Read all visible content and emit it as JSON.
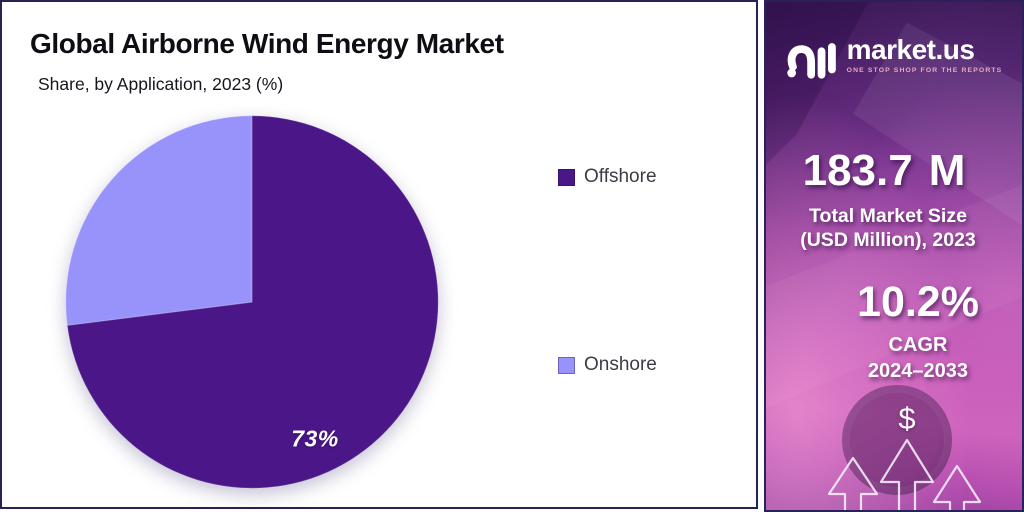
{
  "chart_panel": {
    "title": "Global Airborne Wind Energy Market",
    "subtitle": "Share, by Application, 2023 (%)"
  },
  "chart_data": {
    "type": "pie",
    "title": "Global Airborne Wind Energy Market",
    "subtitle": "Share, by Application, 2023 (%)",
    "unit": "%",
    "categories": [
      "Offshore",
      "Onshore"
    ],
    "values": [
      73,
      27
    ],
    "colors": [
      "#4A1688",
      "#9793FA"
    ],
    "data_labels": [
      "73%",
      ""
    ],
    "start_angle_deg": 0,
    "direction": "clockwise",
    "legend_position": "right",
    "legend_marker": "square"
  },
  "sidebar": {
    "brand": "market.us",
    "tagline": "ONE STOP SHOP FOR THE REPORTS",
    "market_size_value": "183.7",
    "market_size_unit": "M",
    "market_size_label_line1": "Total Market Size",
    "market_size_label_line2": "(USD Million), 2023",
    "cagr_value": "10.2%",
    "cagr_label_line1": "CAGR",
    "cagr_label_line2": "2024–2033",
    "dollar_symbol": "$",
    "colors": {
      "gradient_top": "#3f1d5c",
      "gradient_mid": "#a243a7",
      "gradient_bottom": "#93409c",
      "brand_text": "#ffffff",
      "tagline_text": "#e9a8bc"
    }
  }
}
